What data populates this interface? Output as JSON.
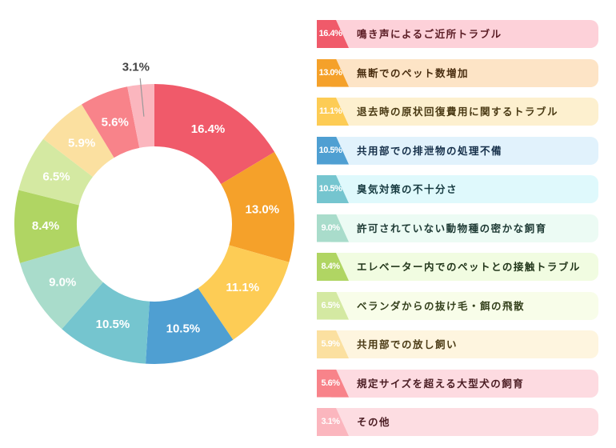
{
  "chart_data": {
    "type": "pie",
    "donut": true,
    "unit": "%",
    "slices": [
      {
        "label": "鳴き声によるご近所トラブル",
        "value": 16.4,
        "value_label": "16.4%",
        "color": "#f05a6a",
        "bg": "#fdd1d9",
        "text": "#5a1c24"
      },
      {
        "label": "無断でのペット数増加",
        "value": 13.0,
        "value_label": "13.0%",
        "color": "#f5a12a",
        "bg": "#fde4c6",
        "text": "#4a2e10"
      },
      {
        "label": "退去時の原状回復費用に関するトラブル",
        "value": 11.1,
        "value_label": "11.1%",
        "color": "#fdcc55",
        "bg": "#fdf0cf",
        "text": "#4a3a14"
      },
      {
        "label": "共用部での排泄物の処理不備",
        "value": 10.5,
        "value_label": "10.5%",
        "color": "#4f9fd2",
        "bg": "#e1f2fc",
        "text": "#16304a"
      },
      {
        "label": "臭気対策の不十分さ",
        "value": 10.5,
        "value_label": "10.5%",
        "color": "#75c5cf",
        "bg": "#dff9fc",
        "text": "#163a40"
      },
      {
        "label": "許可されていない動物種の密かな飼育",
        "value": 9.0,
        "value_label": "9.0%",
        "color": "#a9dccb",
        "bg": "#ecfbf4",
        "text": "#1e3a34"
      },
      {
        "label": "エレベーター内でのペットとの接触トラブル",
        "value": 8.4,
        "value_label": "8.4%",
        "color": "#b0d563",
        "bg": "#f1fce1",
        "text": "#22361a"
      },
      {
        "label": "ベランダからの抜け毛・餌の飛散",
        "value": 6.5,
        "value_label": "6.5%",
        "color": "#d4e9a2",
        "bg": "#f8fde9",
        "text": "#34401c"
      },
      {
        "label": "共用部での放し飼い",
        "value": 5.9,
        "value_label": "5.9%",
        "color": "#fbe0a0",
        "bg": "#fef5df",
        "text": "#4a3a14"
      },
      {
        "label": "規定サイズを超える大型犬の飼育",
        "value": 5.6,
        "value_label": "5.6%",
        "color": "#f8838a",
        "bg": "#fddbe1",
        "text": "#4a1c22"
      },
      {
        "label": "その他",
        "value": 3.1,
        "value_label": "3.1%",
        "color": "#fbb6be",
        "bg": "#fddde2",
        "text": "#4a1c22"
      }
    ]
  }
}
